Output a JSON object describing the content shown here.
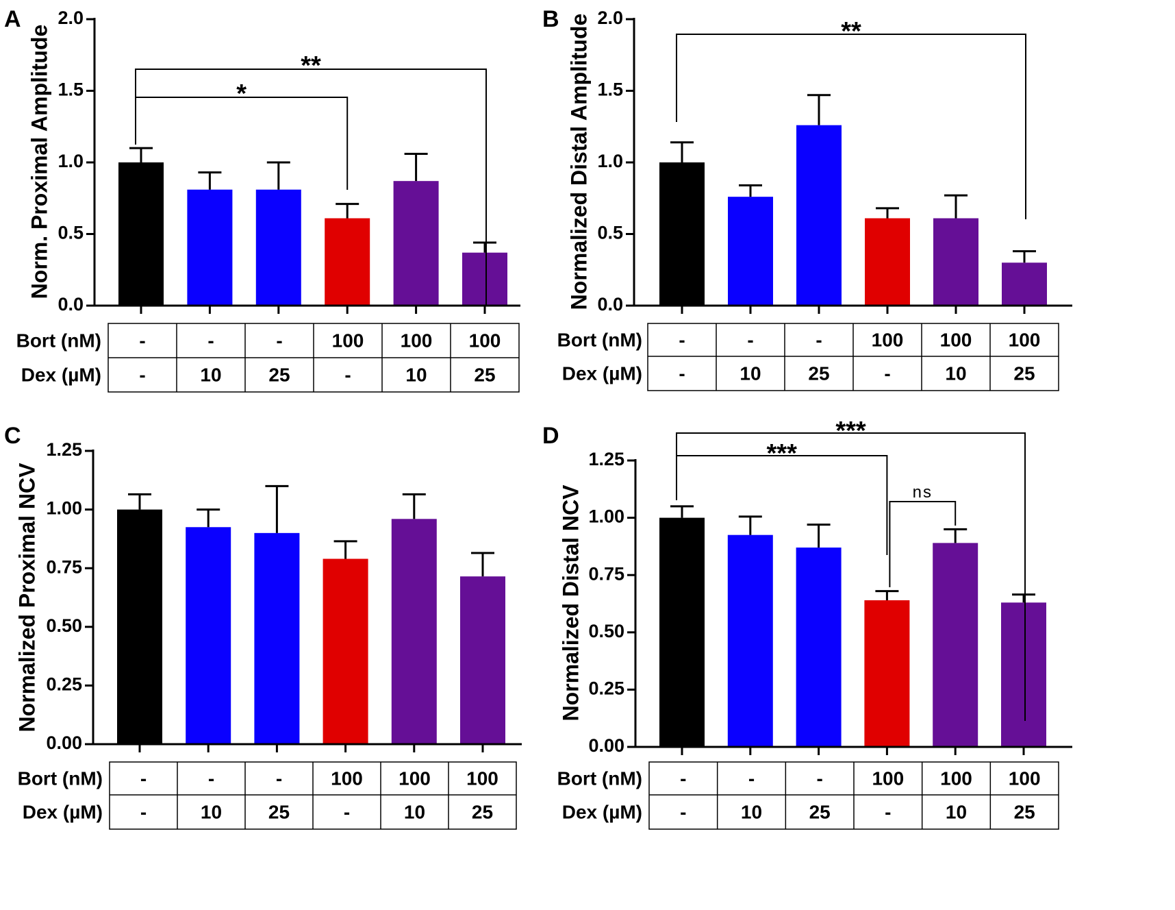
{
  "chart_data": [
    {
      "type": "bar",
      "panel": "A",
      "ylabel": "Norm. Proximal Amplitude",
      "ylim": [
        0,
        2.0
      ],
      "yticks": [
        "0.0",
        "0.5",
        "1.0",
        "1.5",
        "2.0"
      ],
      "yticks_values": [
        0,
        0.5,
        1.0,
        1.5,
        2.0
      ],
      "values": [
        1.0,
        0.81,
        0.81,
        0.61,
        0.87,
        0.37
      ],
      "errors": [
        0.1,
        0.12,
        0.19,
        0.1,
        0.19,
        0.07
      ],
      "colors": [
        "#000000",
        "#0a00ff",
        "#0a00ff",
        "#e00000",
        "#650f96",
        "#650f96"
      ],
      "table": {
        "rows": [
          {
            "label": "Bort (nM)",
            "cells": [
              "-",
              "-",
              "-",
              "100",
              "100",
              "100"
            ]
          },
          {
            "label": "Dex (µM)",
            "cells": [
              "-",
              "10",
              "25",
              "-",
              "10",
              "25"
            ]
          }
        ]
      },
      "significance": [
        {
          "from": 0,
          "to": 5,
          "label": "**"
        },
        {
          "from": 0,
          "to": 3,
          "label": "*"
        }
      ]
    },
    {
      "type": "bar",
      "panel": "B",
      "ylabel": "Normalized Distal Amplitude",
      "ylim": [
        0,
        2.0
      ],
      "yticks": [
        "0.0",
        "0.5",
        "1.0",
        "1.5",
        "2.0"
      ],
      "yticks_values": [
        0,
        0.5,
        1.0,
        1.5,
        2.0
      ],
      "values": [
        1.0,
        0.76,
        1.26,
        0.61,
        0.61,
        0.3
      ],
      "errors": [
        0.14,
        0.08,
        0.21,
        0.07,
        0.16,
        0.08
      ],
      "colors": [
        "#000000",
        "#0a00ff",
        "#0a00ff",
        "#e00000",
        "#650f96",
        "#650f96"
      ],
      "table": {
        "rows": [
          {
            "label": "Bort (nM)",
            "cells": [
              "-",
              "-",
              "-",
              "100",
              "100",
              "100"
            ]
          },
          {
            "label": "Dex (µM)",
            "cells": [
              "-",
              "10",
              "25",
              "-",
              "10",
              "25"
            ]
          }
        ]
      },
      "significance": [
        {
          "from": 0,
          "to": 5,
          "label": "**"
        }
      ]
    },
    {
      "type": "bar",
      "panel": "C",
      "ylabel": "Normalized Proximal NCV",
      "ylim": [
        0,
        1.25
      ],
      "yticks": [
        "0.00",
        "0.25",
        "0.50",
        "0.75",
        "1.00",
        "1.25"
      ],
      "yticks_values": [
        0,
        0.25,
        0.5,
        0.75,
        1.0,
        1.25
      ],
      "values": [
        1.0,
        0.925,
        0.9,
        0.79,
        0.96,
        0.715
      ],
      "errors": [
        0.065,
        0.075,
        0.2,
        0.075,
        0.105,
        0.1
      ],
      "colors": [
        "#000000",
        "#0a00ff",
        "#0a00ff",
        "#e00000",
        "#650f96",
        "#650f96"
      ],
      "table": {
        "rows": [
          {
            "label": "Bort (nM)",
            "cells": [
              "-",
              "-",
              "-",
              "100",
              "100",
              "100"
            ]
          },
          {
            "label": "Dex (µM)",
            "cells": [
              "-",
              "10",
              "25",
              "-",
              "10",
              "25"
            ]
          }
        ]
      },
      "significance": []
    },
    {
      "type": "bar",
      "panel": "D",
      "ylabel": "Normalized Distal NCV",
      "ylim": [
        0,
        1.25
      ],
      "yticks": [
        "0.00",
        "0.25",
        "0.50",
        "0.75",
        "1.00",
        "1.25"
      ],
      "yticks_values": [
        0,
        0.25,
        0.5,
        0.75,
        1.0,
        1.25
      ],
      "values": [
        1.0,
        0.925,
        0.87,
        0.64,
        0.89,
        0.63
      ],
      "errors": [
        0.05,
        0.08,
        0.1,
        0.04,
        0.06,
        0.035
      ],
      "colors": [
        "#000000",
        "#0a00ff",
        "#0a00ff",
        "#e00000",
        "#650f96",
        "#650f96"
      ],
      "table": {
        "rows": [
          {
            "label": "Bort (nM)",
            "cells": [
              "-",
              "-",
              "-",
              "100",
              "100",
              "100"
            ]
          },
          {
            "label": "Dex (µM)",
            "cells": [
              "-",
              "10",
              "25",
              "-",
              "10",
              "25"
            ]
          }
        ]
      },
      "significance": [
        {
          "from": 0,
          "to": 5,
          "label": "***"
        },
        {
          "from": 0,
          "to": 3,
          "label": "***"
        },
        {
          "from": 3,
          "to": 4,
          "label": "ns"
        }
      ]
    }
  ]
}
